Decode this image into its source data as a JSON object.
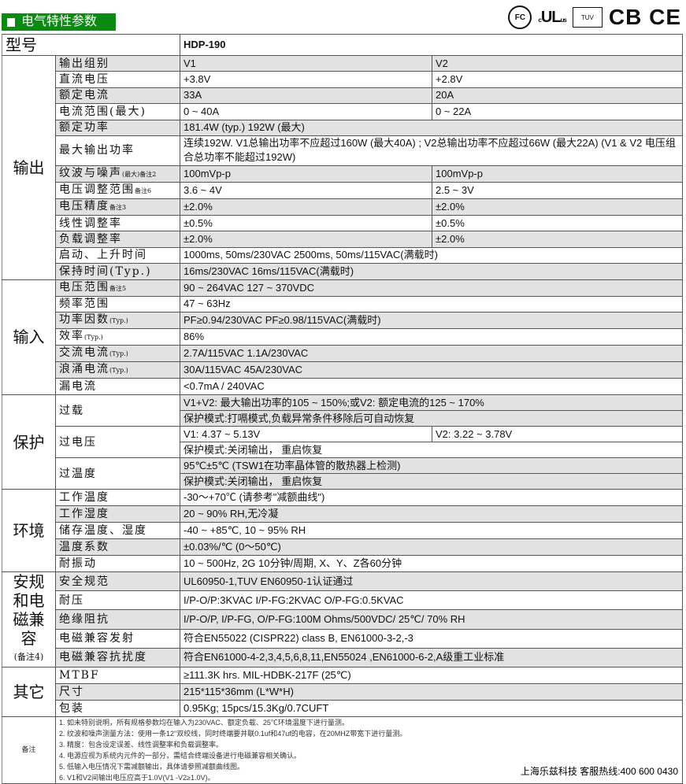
{
  "header": {
    "title": "电气特性参数",
    "certs": [
      "FC",
      "c UL us",
      "TUV",
      "CB",
      "CE"
    ]
  },
  "model": {
    "label": "型号",
    "value": "HDP-190"
  },
  "sections": {
    "output": {
      "group": "输出",
      "rows": [
        {
          "label": "输出组别",
          "v1": "V1",
          "v2": "V2",
          "shade": true
        },
        {
          "label": "直流电压",
          "v1": "+3.8V",
          "v2": "+2.8V",
          "shade": false
        },
        {
          "label": "额定电流",
          "v1": "33A",
          "v2": "20A",
          "shade": true
        },
        {
          "label": "电流范围(最大)",
          "v1": "0 ~ 40A",
          "v2": "0 ~ 22A",
          "shade": false
        },
        {
          "label": "额定功率",
          "v": "181.4W (typ.)        192W (最大)",
          "shade": true
        },
        {
          "label": "最大输出功率",
          "v": "连续192W. V1总输出功率不应超过160W (最大40A) ; V2总输出功率不应超过66W (最大22A) (V1 & V2 电压组合总功率不能超过192W)",
          "shade": false,
          "tall": true
        },
        {
          "label": "纹波与噪声",
          "sub": "(最大)备注2",
          "v1": "100mVp-p",
          "v2": "100mVp-p",
          "shade": true
        },
        {
          "label": "电压调整范围",
          "sub": "备注6",
          "v1": "3.6 ~ 4V",
          "v2": "2.5 ~ 3V",
          "shade": false
        },
        {
          "label": "电压精度",
          "sub": "备注3",
          "v1": "±2.0%",
          "v2": "±2.0%",
          "shade": true
        },
        {
          "label": "线性调整率",
          "v1": "±0.5%",
          "v2": "±0.5%",
          "shade": false
        },
        {
          "label": "负载调整率",
          "v1": "±2.0%",
          "v2": "±2.0%",
          "shade": true
        },
        {
          "label": "启动、上升时间",
          "v": "1000ms, 50ms/230VAC        2500ms, 50ms/115VAC(满载时)",
          "shade": false
        },
        {
          "label": "保持时间(Typ.)",
          "v": "16ms/230VAC        16ms/115VAC(满载时)",
          "shade": true
        }
      ]
    },
    "input": {
      "group": "输入",
      "rows": [
        {
          "label": "电压范围",
          "sub": "备注5",
          "v": "90 ~ 264VAC        127 ~ 370VDC",
          "shade": true
        },
        {
          "label": "频率范围",
          "v": "47 ~ 63Hz",
          "shade": false
        },
        {
          "label": "功率因数",
          "sub": "(Typ.)",
          "v": "PF≥0.94/230VAC        PF≥0.98/115VAC(满载时)",
          "shade": true
        },
        {
          "label": "效率",
          "sub": "(Typ.)",
          "v": "86%",
          "shade": false
        },
        {
          "label": "交流电流",
          "sub": "(Typ.)",
          "v": "2.7A/115VAC        1.1A/230VAC",
          "shade": true
        },
        {
          "label": "浪涌电流",
          "sub": "(Typ.)",
          "v": "30A/115VAC        45A/230VAC",
          "shade": true
        },
        {
          "label": "漏电流",
          "v": "<0.7mA / 240VAC",
          "shade": false
        }
      ]
    },
    "protection": {
      "group": "保护",
      "overload": {
        "label": "过载",
        "line1": "V1+V2: 最大输出功率的105 ~ 150%;或V2: 额定电流的125 ~ 170%",
        "line2": "保护模式:打嗝模式,负载异常条件移除后可自动恢复"
      },
      "overvoltage": {
        "label": "过电压",
        "v1": "V1: 4.37 ~ 5.13V",
        "v2": "V2: 3.22 ~ 3.78V",
        "line2": "保护模式:关闭输出， 重启恢复"
      },
      "overtemp": {
        "label": "过温度",
        "line1": "95℃±5℃ (TSW1在功率晶体管的散热器上检测)",
        "line2": "保护模式:关闭输出， 重启恢复"
      }
    },
    "environment": {
      "group": "环境",
      "rows": [
        {
          "label": "工作温度",
          "v": "-30～+70℃ (请参考\"减额曲线\")",
          "shade": false
        },
        {
          "label": "工作湿度",
          "v": "20 ~ 90% RH,无冷凝",
          "shade": true
        },
        {
          "label": "储存温度、湿度",
          "v": "-40 ~ +85℃, 10 ~ 95% RH",
          "shade": false
        },
        {
          "label": "温度系数",
          "v": "±0.03%/℃ (0～50℃)",
          "shade": true
        },
        {
          "label": "耐振动",
          "v": "10 ~ 500Hz, 2G 10分钟/周期, X、Y、Z各60分钟",
          "shade": false
        }
      ]
    },
    "safety": {
      "group": "安规和电磁兼容",
      "group_note": "(备注4)",
      "rows": [
        {
          "label": "安全规范",
          "v": "UL60950-1,TUV EN60950-1认证通过",
          "shade": true
        },
        {
          "label": "耐压",
          "v": "I/P-O/P:3KVAC    I/P-FG:2KVAC    O/P-FG:0.5KVAC",
          "shade": false
        },
        {
          "label": "绝缘阻抗",
          "v": "I/P-O/P, I/P-FG, O/P-FG:100M Ohms/500VDC/ 25℃/ 70% RH",
          "shade": true
        },
        {
          "label": "电磁兼容发射",
          "v": "符合EN55022 (CISPR22) class B, EN61000-3-2,-3",
          "shade": false
        },
        {
          "label": "电磁兼容抗扰度",
          "v": "符合EN61000-4-2,3,4,5,6,8,11,EN55024 ,EN61000-6-2,A级重工业标准",
          "shade": true
        }
      ]
    },
    "other": {
      "group": "其它",
      "rows": [
        {
          "label": "MTBF",
          "v": "≥111.3K hrs.  MIL-HDBK-217F (25℃)",
          "shade": false
        },
        {
          "label": "尺寸",
          "v": "215*115*36mm (L*W*H)",
          "shade": true
        },
        {
          "label": "包装",
          "v": "0.95Kg; 15pcs/15.3Kg/0.7CUFT",
          "shade": false
        }
      ]
    },
    "notes": {
      "group": "备注",
      "items": [
        "1. 如未特别说明，所有规格参数均在输入为230VAC、额定负载、25℃环境温度下进行量测。",
        "2. 纹波和噪声测量方法：使用一条12\"双绞线，同时终端要并联0.1uf和47uf的电容，在20MHZ带宽下进行量测。",
        "3. 精度：包含设定误差、线性调整率和负载调整率。",
        "4. 电源应视为系统内元件的一部分，需结合终端设备进行电磁兼容相关确认。",
        "5. 低输入电压情况下需减额输出，具体请参照减额曲线图。",
        "6. V1和V2间输出电压应高于1.0V(V1 -V2≥1.0V)。"
      ]
    }
  },
  "footer": {
    "hotline": "上海乐兹科技 客服热线:400 600 0430"
  }
}
